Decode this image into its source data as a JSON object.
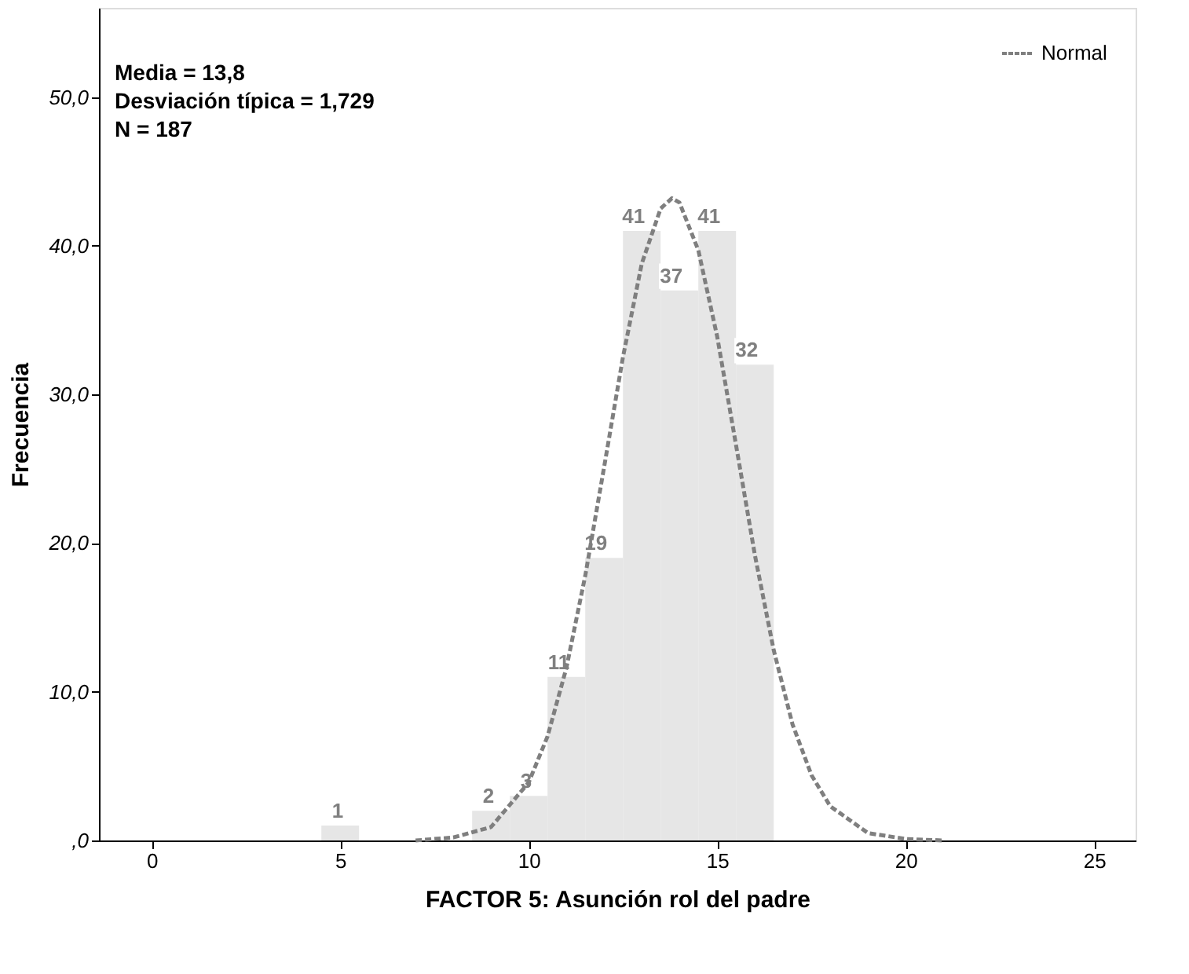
{
  "chart_data": {
    "type": "histogram",
    "xlabel": "FACTOR 5: Asunción rol del padre",
    "ylabel": "Frecuencia",
    "annotations": [
      "Media = 13,8",
      "Desviación típica = 1,729",
      "N = 187"
    ],
    "series": [
      {
        "color": "#e6e6e6",
        "bins": [
          4.5,
          5.5,
          6.5,
          7.5,
          8.5,
          9.5,
          10.5,
          11.5,
          12.5,
          13.5,
          14.5,
          15.5,
          16.5
        ],
        "values": [
          1,
          0,
          0,
          0,
          2,
          3,
          11,
          19,
          41,
          37,
          41,
          32
        ],
        "value_labels": [
          "1",
          null,
          null,
          null,
          "2",
          "3",
          "11",
          "19",
          "41",
          "37",
          "41",
          "32"
        ]
      },
      {
        "type": "line",
        "name": "Normal",
        "color": "#7f7f7f",
        "line_style": "dashed",
        "x": [
          7,
          8,
          9,
          10,
          10.5,
          11,
          11.5,
          12,
          12.5,
          13,
          13.5,
          13.8,
          14,
          14.5,
          15,
          15.5,
          16,
          16.5,
          17,
          17.5,
          18,
          19,
          20,
          21
        ],
        "values": [
          0.0,
          0.2,
          0.9,
          3.9,
          7.0,
          11.6,
          17.8,
          25.1,
          32.5,
          38.8,
          42.5,
          43.2,
          42.9,
          39.7,
          33.9,
          26.6,
          19.2,
          12.8,
          7.8,
          4.4,
          2.3,
          0.5,
          0.1,
          0.0
        ]
      }
    ],
    "xlim": [
      -1.4,
      26.1
    ],
    "xticks": [
      0,
      5,
      10,
      15,
      20,
      25
    ],
    "ylim": [
      0,
      56
    ],
    "yticks": [
      {
        "value": 0,
        "label": ",0"
      },
      {
        "value": 10,
        "label": "10,0"
      },
      {
        "value": 20,
        "label": "20,0"
      },
      {
        "value": 30,
        "label": "30,0"
      },
      {
        "value": 40,
        "label": "40,0"
      },
      {
        "value": 50,
        "label": "50,0"
      }
    ],
    "grid": false,
    "legend": "top right"
  }
}
